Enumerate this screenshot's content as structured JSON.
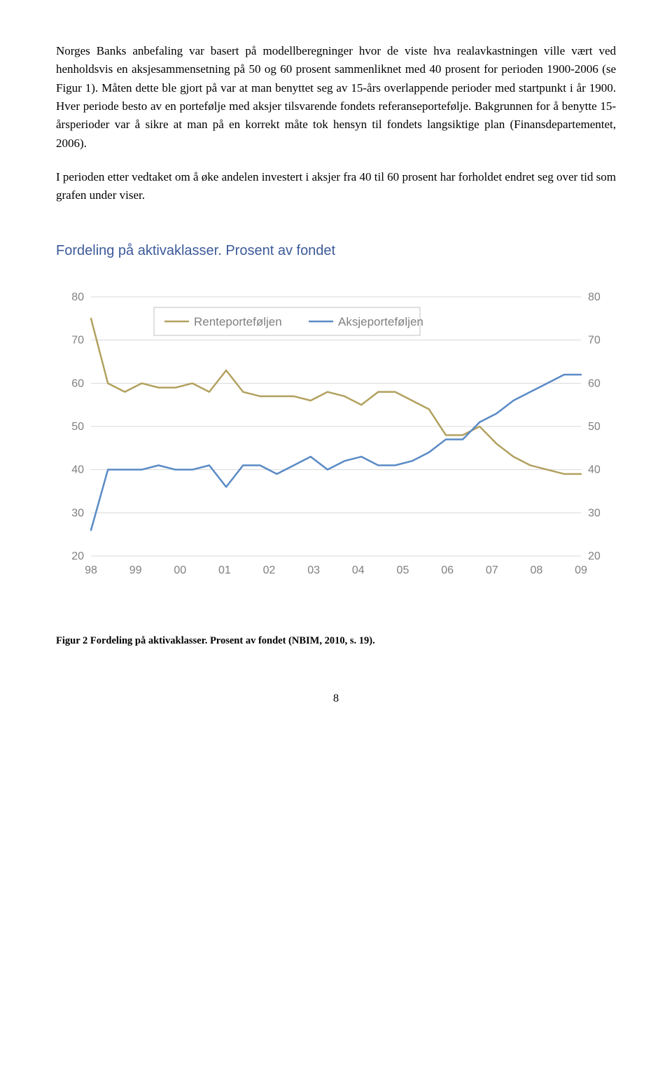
{
  "paragraphs": {
    "p1": "Norges Banks anbefaling var basert på modellberegninger hvor de viste hva realavkastningen ville vært ved henholdsvis en aksjesammensetning på 50 og 60 prosent sammenliknet med 40 prosent for perioden 1900-2006 (se Figur 1). Måten dette ble gjort på var at man benyttet seg av 15-års overlappende perioder med startpunkt i år 1900. Hver periode besto av en portefølje med aksjer tilsvarende fondets referanseportefølje. Bakgrunnen for å benytte 15-årsperioder var å sikre at man på en korrekt måte tok hensyn til fondets langsiktige plan (Finansdepartementet, 2006).",
    "p2": "I perioden etter vedtaket om å øke andelen investert i aksjer fra 40 til 60 prosent har forholdet endret seg over tid som grafen under viser."
  },
  "chart": {
    "type": "line",
    "title": "Fordeling på aktivaklasser. Prosent av fondet",
    "title_color": "#3c5a9a",
    "title_fontsize": 20,
    "background_color": "#ffffff",
    "grid_color": "#d9d9d9",
    "axis_text_color": "#808080",
    "axis_fontsize": 16,
    "x_categories": [
      "98",
      "99",
      "00",
      "01",
      "02",
      "03",
      "04",
      "05",
      "06",
      "07",
      "08",
      "09"
    ],
    "y_ticks": [
      20,
      30,
      40,
      50,
      60,
      70,
      80
    ],
    "ylim": [
      20,
      80
    ],
    "line_width": 2.5,
    "legend": {
      "position": "top",
      "box_color": "#c0c0c0",
      "items": [
        {
          "label": "Renteporteføljen",
          "color": "#b2a15f"
        },
        {
          "label": "Aksjeporteføljen",
          "color": "#5a8ac6"
        }
      ]
    },
    "series": [
      {
        "name": "Renteporteføljen",
        "color": "#b2a15f",
        "values": [
          75,
          60,
          58,
          60,
          59,
          59,
          60,
          58,
          63,
          58,
          57,
          57,
          57,
          56,
          58,
          57,
          55,
          58,
          58,
          56,
          54,
          48,
          48,
          50,
          46,
          43,
          41,
          40,
          39,
          39
        ]
      },
      {
        "name": "Aksjeporteføljen",
        "color": "#5a8ac6",
        "values": [
          26,
          40,
          40,
          40,
          41,
          40,
          40,
          41,
          36,
          41,
          41,
          39,
          41,
          43,
          40,
          42,
          43,
          41,
          41,
          42,
          44,
          47,
          47,
          51,
          53,
          56,
          58,
          60,
          62,
          62
        ]
      }
    ]
  },
  "caption": "Figur 2 Fordeling på aktivaklasser. Prosent av fondet (NBIM, 2010, s. 19).",
  "page_number": "8"
}
